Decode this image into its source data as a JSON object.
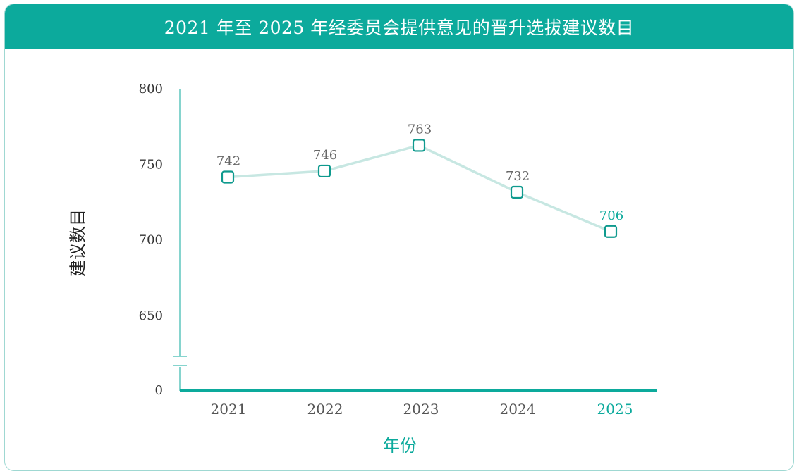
{
  "chart_data": {
    "type": "line",
    "title": "2021 年至 2025 年经委员会提供意见的晋升选拔建议数目",
    "xlabel": "年份",
    "ylabel": "建议数目",
    "categories": [
      "2021",
      "2022",
      "2023",
      "2024",
      "2025"
    ],
    "series": [
      {
        "values": [
          742,
          746,
          763,
          732,
          706
        ]
      }
    ],
    "y_ticks": [
      "800",
      "750",
      "700",
      "650",
      "0"
    ],
    "ylim": [
      0,
      800
    ],
    "y_axis_break": true,
    "highlight_category": "2025",
    "grid": false,
    "colors": {
      "accent": "#0caa9c",
      "line": "#c7e7e2",
      "marker_stroke": "#0f9a8e",
      "axis_line": "#0caa9c",
      "tick_text": "#333333",
      "data_label": "#666666"
    }
  }
}
